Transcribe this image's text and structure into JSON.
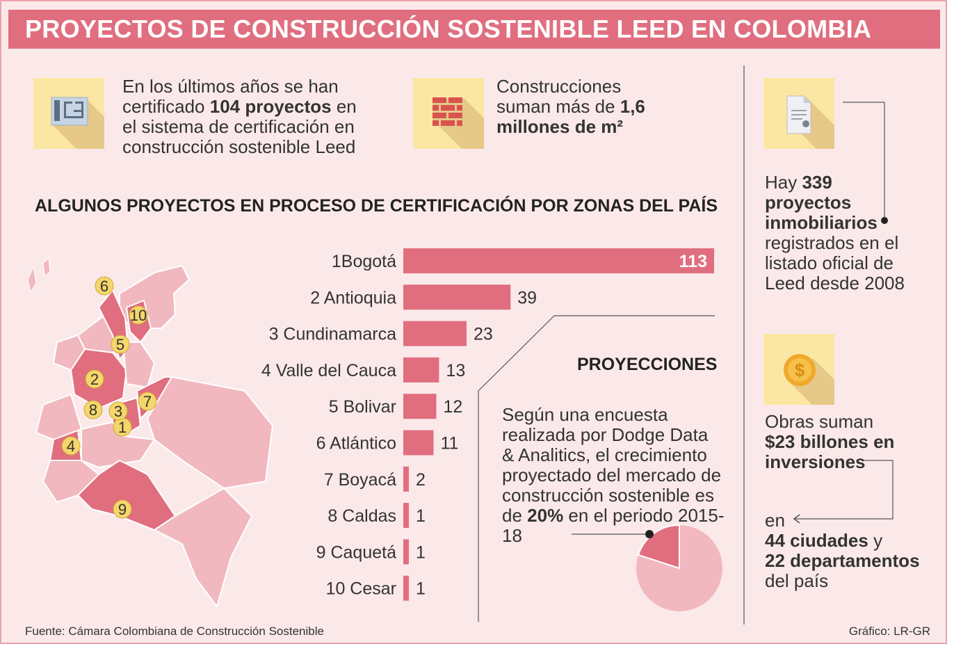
{
  "title": "PROYECTOS DE CONSTRUCCIÓN SOSTENIBLE LEED EN COLOMBIA",
  "stats": {
    "certified": {
      "pre": "En los últimos años se han certificado ",
      "bold": "104 proyectos",
      "post": " en el sistema de certificación en construcción sostenible Leed",
      "icon": "blueprint-icon"
    },
    "area": {
      "pre": "Construcciones suman más de ",
      "bold": "1,6 millones de m²",
      "icon": "brick-wall-icon"
    },
    "registered": {
      "pre": "Hay ",
      "bold_num": "339",
      "bold": "proyectos inmobiliarios",
      "post": "registrados en el listado oficial de Leed desde 2008",
      "icon": "certificate-document-icon"
    },
    "investment": {
      "pre": "Obras suman ",
      "bold": "$23 billones en inversiones",
      "mid": "en",
      "bold2_a": "44 ciudades",
      "mid2": " y",
      "bold2_b": "22 departamentos",
      "post": "del país",
      "icon": "dollar-coin-icon"
    }
  },
  "section_heading": "ALGUNOS PROYECTOS EN PROCESO DE CERTIFICACIÓN POR ZONAS DEL PAÍS",
  "projections": {
    "heading": "PROYECCIONES",
    "text_pre": "Según una encuesta realizada por Dodge Data & Analitics, el crecimiento proyectado del mercado de construcción sostenible es de ",
    "text_bold": "20%",
    "text_post": " en el periodo 2015-18",
    "pie_share": 0.2
  },
  "source": "Fuente: Cámara Colombiana de Construcción Sostenible",
  "credit": "Gráfico: LR-GR",
  "colors": {
    "title_bar": "#e06e7f",
    "bar": "#e06e7f",
    "background": "#fbe9ea",
    "icon_bg": "#fbe7a3",
    "map_highlight": "#e06e7f",
    "map_base": "#f2b8bf",
    "pie_base": "#f2b8bf",
    "marker": "#f5d66b"
  },
  "chart_data": {
    "type": "bar",
    "categories": [
      "1Bogotá",
      "2 Antioquia",
      "3 Cundinamarca",
      "4 Valle del Cauca",
      "5 Bolivar",
      "6 Atlántico",
      "7 Boyacá",
      "8 Caldas",
      "9 Caquetá",
      "10 Cesar"
    ],
    "values": [
      113,
      39,
      23,
      13,
      12,
      11,
      2,
      1,
      1,
      1
    ],
    "orientation": "horizontal",
    "title": "ALGUNOS PROYECTOS EN PROCESO DE CERTIFICACIÓN POR ZONAS DEL PAÍS"
  },
  "map_markers": [
    "1",
    "2",
    "3",
    "4",
    "5",
    "6",
    "7",
    "8",
    "9",
    "10"
  ]
}
